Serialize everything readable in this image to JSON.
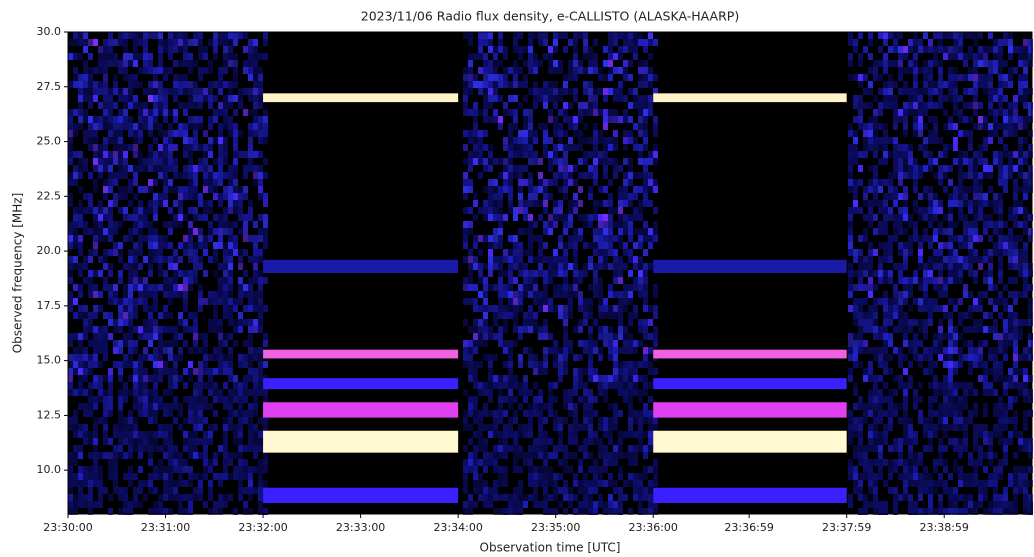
{
  "chart_data": {
    "type": "spectrogram",
    "title": "2023/11/06  Radio flux density, e-CALLISTO (ALASKA-HAARP)",
    "x_label": "Observation time [UTC]",
    "y_label": "Observed frequency [MHz]",
    "xlim": [
      84600,
      85193
    ],
    "xticks": [
      {
        "value": 84600,
        "label": "23:30:00"
      },
      {
        "value": 84660,
        "label": "23:31:00"
      },
      {
        "value": 84720,
        "label": "23:32:00"
      },
      {
        "value": 84780,
        "label": "23:33:00"
      },
      {
        "value": 84840,
        "label": "23:34:00"
      },
      {
        "value": 84900,
        "label": "23:35:00"
      },
      {
        "value": 84960,
        "label": "23:36:00"
      },
      {
        "value": 85019,
        "label": "23:36:59"
      },
      {
        "value": 85079,
        "label": "23:37:59"
      },
      {
        "value": 85139,
        "label": "23:38:59"
      }
    ],
    "ylim": [
      8,
      30
    ],
    "yticks": [
      {
        "value": 10,
        "label": "10.0"
      },
      {
        "value": 12.5,
        "label": "12.5"
      },
      {
        "value": 15,
        "label": "15.0"
      },
      {
        "value": 17.5,
        "label": "17.5"
      },
      {
        "value": 20,
        "label": "20.0"
      },
      {
        "value": 22.5,
        "label": "22.5"
      },
      {
        "value": 25,
        "label": "25.0"
      },
      {
        "value": 27.5,
        "label": "27.5"
      },
      {
        "value": 30,
        "label": "30.0"
      }
    ],
    "background_color": "#000000",
    "bands": [
      {
        "x": [
          84720,
          84840
        ],
        "y": [
          26.8,
          27.2
        ],
        "color": "#fff4c8"
      },
      {
        "x": [
          84720,
          84840
        ],
        "y": [
          19.0,
          19.6
        ],
        "color": "#1a1aa8"
      },
      {
        "x": [
          84720,
          84840
        ],
        "y": [
          15.1,
          15.5
        ],
        "color": "#f060e0"
      },
      {
        "x": [
          84720,
          84840
        ],
        "y": [
          13.7,
          14.2
        ],
        "color": "#3a20ff"
      },
      {
        "x": [
          84720,
          84840
        ],
        "y": [
          12.4,
          13.1
        ],
        "color": "#e040f0"
      },
      {
        "x": [
          84720,
          84840
        ],
        "y": [
          10.8,
          11.8
        ],
        "color": "#fff8d0"
      },
      {
        "x": [
          84720,
          84840
        ],
        "y": [
          8.5,
          9.2
        ],
        "color": "#3a20ff"
      },
      {
        "x": [
          84960,
          85079
        ],
        "y": [
          26.8,
          27.2
        ],
        "color": "#fff4c8"
      },
      {
        "x": [
          84960,
          85079
        ],
        "y": [
          19.0,
          19.6
        ],
        "color": "#1a1aa8"
      },
      {
        "x": [
          84960,
          85079
        ],
        "y": [
          15.1,
          15.5
        ],
        "color": "#f060e0"
      },
      {
        "x": [
          84960,
          85079
        ],
        "y": [
          13.7,
          14.2
        ],
        "color": "#3a20ff"
      },
      {
        "x": [
          84960,
          85079
        ],
        "y": [
          12.4,
          13.1
        ],
        "color": "#e040f0"
      },
      {
        "x": [
          84960,
          85079
        ],
        "y": [
          10.8,
          11.8
        ],
        "color": "#fff8d0"
      },
      {
        "x": [
          84960,
          85079
        ],
        "y": [
          8.5,
          9.2
        ],
        "color": "#3a20ff"
      }
    ]
  }
}
